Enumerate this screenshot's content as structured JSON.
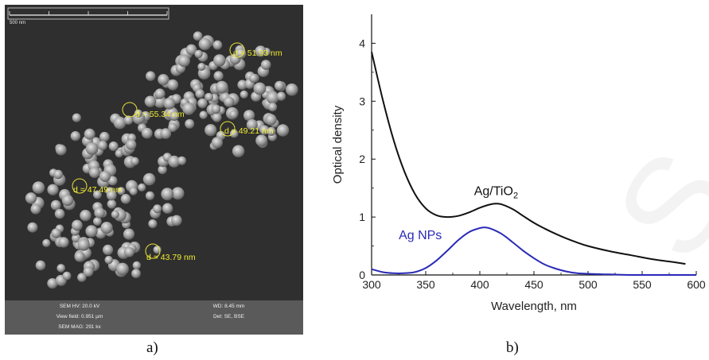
{
  "panel_a": {
    "scale_bar_label": "500 nm",
    "annotations": [
      {
        "text": "d = 51.93 nm"
      },
      {
        "text": "d = 55.34 nm"
      },
      {
        "text": "d = 49.21 nm"
      },
      {
        "text": "d = 47.49 nm"
      },
      {
        "text": "d = 43.79 nm"
      }
    ],
    "footer": {
      "hv": "SEM HV: 20.0 kV",
      "wd": "WD: 8.45 mm",
      "view_field": "View field: 0.951 µm",
      "det": "Det: SE, BSE",
      "mag": "SEM MAG: 291 kx"
    },
    "caption": "a)"
  },
  "panel_b": {
    "caption": "b)"
  },
  "chart_data": {
    "type": "line",
    "xlabel": "Wavelength, nm",
    "ylabel": "Optical density",
    "xlim": [
      300,
      600
    ],
    "ylim": [
      0,
      4.5
    ],
    "x_ticks": [
      "300",
      "350",
      "400",
      "450",
      "500",
      "550",
      "600"
    ],
    "y_ticks": [
      "0",
      "1",
      "2",
      "3",
      "4"
    ],
    "grid": false,
    "series": [
      {
        "name": "Ag/TiO2",
        "color": "#111111",
        "x": [
          300,
          310,
          320,
          330,
          340,
          350,
          360,
          370,
          380,
          390,
          400,
          410,
          415,
          420,
          430,
          440,
          450,
          460,
          470,
          480,
          490,
          500,
          520,
          540,
          560,
          580,
          590
        ],
        "y": [
          3.85,
          3.05,
          2.35,
          1.8,
          1.4,
          1.15,
          1.03,
          1.0,
          1.02,
          1.08,
          1.16,
          1.22,
          1.23,
          1.22,
          1.14,
          1.02,
          0.9,
          0.8,
          0.71,
          0.63,
          0.56,
          0.5,
          0.41,
          0.34,
          0.27,
          0.22,
          0.19
        ]
      },
      {
        "name": "Ag NPs",
        "color": "#2a2ab8",
        "x": [
          300,
          310,
          320,
          330,
          340,
          350,
          360,
          370,
          380,
          390,
          400,
          405,
          410,
          420,
          430,
          440,
          450,
          460,
          470,
          480,
          490,
          500,
          520,
          540,
          560,
          600
        ],
        "y": [
          0.1,
          0.05,
          0.03,
          0.03,
          0.05,
          0.12,
          0.25,
          0.42,
          0.6,
          0.74,
          0.81,
          0.82,
          0.8,
          0.71,
          0.57,
          0.42,
          0.29,
          0.18,
          0.11,
          0.06,
          0.03,
          0.02,
          0.01,
          0.0,
          0.0,
          0.0
        ]
      }
    ],
    "annotations": [
      {
        "text": "Ag/TiO",
        "subscript": "2",
        "x": 415,
        "y": 1.38
      },
      {
        "text": "Ag NPs",
        "x": 345,
        "y": 0.62
      }
    ]
  }
}
